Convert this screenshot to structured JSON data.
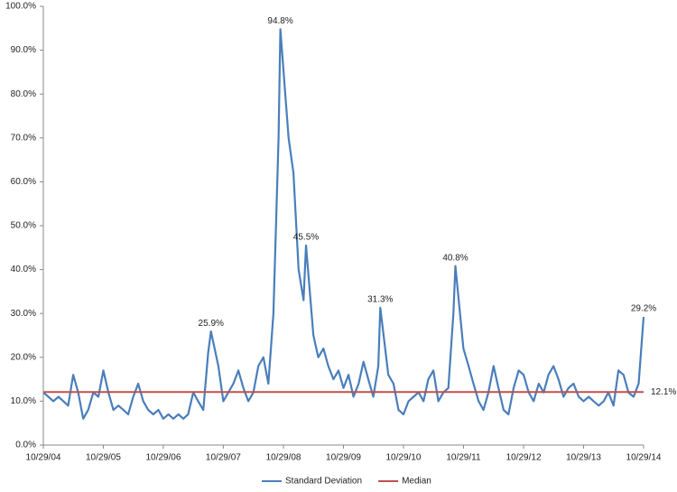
{
  "chart_data": {
    "type": "line",
    "series": [
      {
        "name": "Standard Deviation",
        "color": "#4a7ebb",
        "x": [
          "10/29/04",
          "11/29/04",
          "12/29/04",
          "01/29/05",
          "02/28/05",
          "03/29/05",
          "04/29/05",
          "05/29/05",
          "06/29/05",
          "07/29/05",
          "08/29/05",
          "09/29/05",
          "10/29/05",
          "11/29/05",
          "12/29/05",
          "01/29/06",
          "02/28/06",
          "03/29/06",
          "04/29/06",
          "05/29/06",
          "06/29/06",
          "07/29/06",
          "08/29/06",
          "09/29/06",
          "10/29/06",
          "11/29/06",
          "12/29/06",
          "01/29/07",
          "02/28/07",
          "03/29/07",
          "04/29/07",
          "05/29/07",
          "06/29/07",
          "07/29/07",
          "08/15/07",
          "09/29/07",
          "10/29/07",
          "11/29/07",
          "12/29/07",
          "01/29/08",
          "02/28/08",
          "03/29/08",
          "04/29/08",
          "05/29/08",
          "06/29/08",
          "07/29/08",
          "08/29/08",
          "09/29/08",
          "10/10/08",
          "11/29/08",
          "12/29/08",
          "01/29/09",
          "02/28/09",
          "03/15/09",
          "04/29/09",
          "05/29/09",
          "06/29/09",
          "07/29/09",
          "08/29/09",
          "09/29/09",
          "10/29/09",
          "11/29/09",
          "12/29/09",
          "01/29/10",
          "02/28/10",
          "03/29/10",
          "04/29/10",
          "05/29/10",
          "06/10/10",
          "07/29/10",
          "08/29/10",
          "09/29/10",
          "10/29/10",
          "11/29/10",
          "12/29/10",
          "01/29/11",
          "02/28/11",
          "03/29/11",
          "04/29/11",
          "05/29/11",
          "06/29/11",
          "07/29/11",
          "08/29/11",
          "09/10/11",
          "10/29/11",
          "11/29/11",
          "12/29/11",
          "01/29/12",
          "02/28/12",
          "03/29/12",
          "04/29/12",
          "05/29/12",
          "06/29/12",
          "07/29/12",
          "08/29/12",
          "09/29/12",
          "10/29/12",
          "11/29/12",
          "12/29/12",
          "01/29/13",
          "02/28/13",
          "03/29/13",
          "04/29/13",
          "05/29/13",
          "06/29/13",
          "07/29/13",
          "08/29/13",
          "09/29/13",
          "10/29/13",
          "11/29/13",
          "12/29/13",
          "01/29/14",
          "02/28/14",
          "03/29/14",
          "04/29/14",
          "05/29/14",
          "06/29/14",
          "07/29/14",
          "08/29/14",
          "09/29/14",
          "10/29/14"
        ],
        "values": [
          12,
          11,
          10,
          11,
          10,
          9,
          16,
          12,
          6,
          8,
          12,
          11,
          17,
          12,
          8,
          9,
          8,
          7,
          11,
          14,
          10,
          8,
          7,
          8,
          6,
          7,
          6,
          7,
          6,
          7,
          12,
          10,
          8,
          21,
          25.9,
          18,
          10,
          12,
          14,
          17,
          13,
          10,
          12,
          18,
          20,
          14,
          30,
          70,
          94.8,
          70,
          62,
          40,
          33,
          45.5,
          25,
          20,
          22,
          18,
          15,
          17,
          13,
          16,
          11,
          14,
          19,
          15,
          11,
          18,
          31.3,
          16,
          14,
          8,
          7,
          10,
          11,
          12,
          10,
          15,
          17,
          10,
          12,
          13,
          30,
          40.8,
          22,
          18,
          14,
          10,
          8,
          12,
          18,
          13,
          8,
          7,
          13,
          17,
          16,
          12,
          10,
          14,
          12,
          16,
          18,
          15,
          11,
          13,
          14,
          11,
          10,
          11,
          10,
          9,
          10,
          12,
          9,
          17,
          16,
          12,
          11,
          14,
          29.2
        ]
      },
      {
        "name": "Median",
        "color": "#c0504d",
        "x": [
          "10/29/04",
          "10/29/14"
        ],
        "values": [
          12.1,
          12.1
        ]
      }
    ],
    "annotations": [
      {
        "label": "94.8%",
        "x": "10/10/08",
        "value": 94.8
      },
      {
        "label": "45.5%",
        "x": "03/15/09",
        "value": 45.5
      },
      {
        "label": "25.9%",
        "x": "08/15/07",
        "value": 25.9
      },
      {
        "label": "31.3%",
        "x": "06/10/10",
        "value": 31.3
      },
      {
        "label": "40.8%",
        "x": "09/10/11",
        "value": 40.8
      },
      {
        "label": "29.2%",
        "x": "10/29/14",
        "value": 29.2
      },
      {
        "label": "12.1%",
        "x": "10/29/14",
        "value": 12.1
      }
    ],
    "xlim": [
      "10/29/04",
      "10/29/14"
    ],
    "xticks": [
      "10/29/04",
      "10/29/05",
      "10/29/06",
      "10/29/07",
      "10/29/08",
      "10/29/09",
      "10/29/10",
      "10/29/11",
      "10/29/12",
      "10/29/13",
      "10/29/14"
    ],
    "ylim": [
      0,
      100
    ],
    "yticks": [
      {
        "value": 0,
        "label": "0.0%"
      },
      {
        "value": 10,
        "label": "10.0%"
      },
      {
        "value": 20,
        "label": "20.0%"
      },
      {
        "value": 30,
        "label": "30.0%"
      },
      {
        "value": 40,
        "label": "40.0%"
      },
      {
        "value": 50,
        "label": "50.0%"
      },
      {
        "value": 60,
        "label": "60.0%"
      },
      {
        "value": 70,
        "label": "70.0%"
      },
      {
        "value": 80,
        "label": "80.0%"
      },
      {
        "value": 90,
        "label": "90.0%"
      },
      {
        "value": 100,
        "label": "100.0%"
      }
    ],
    "legend": "bottom"
  }
}
